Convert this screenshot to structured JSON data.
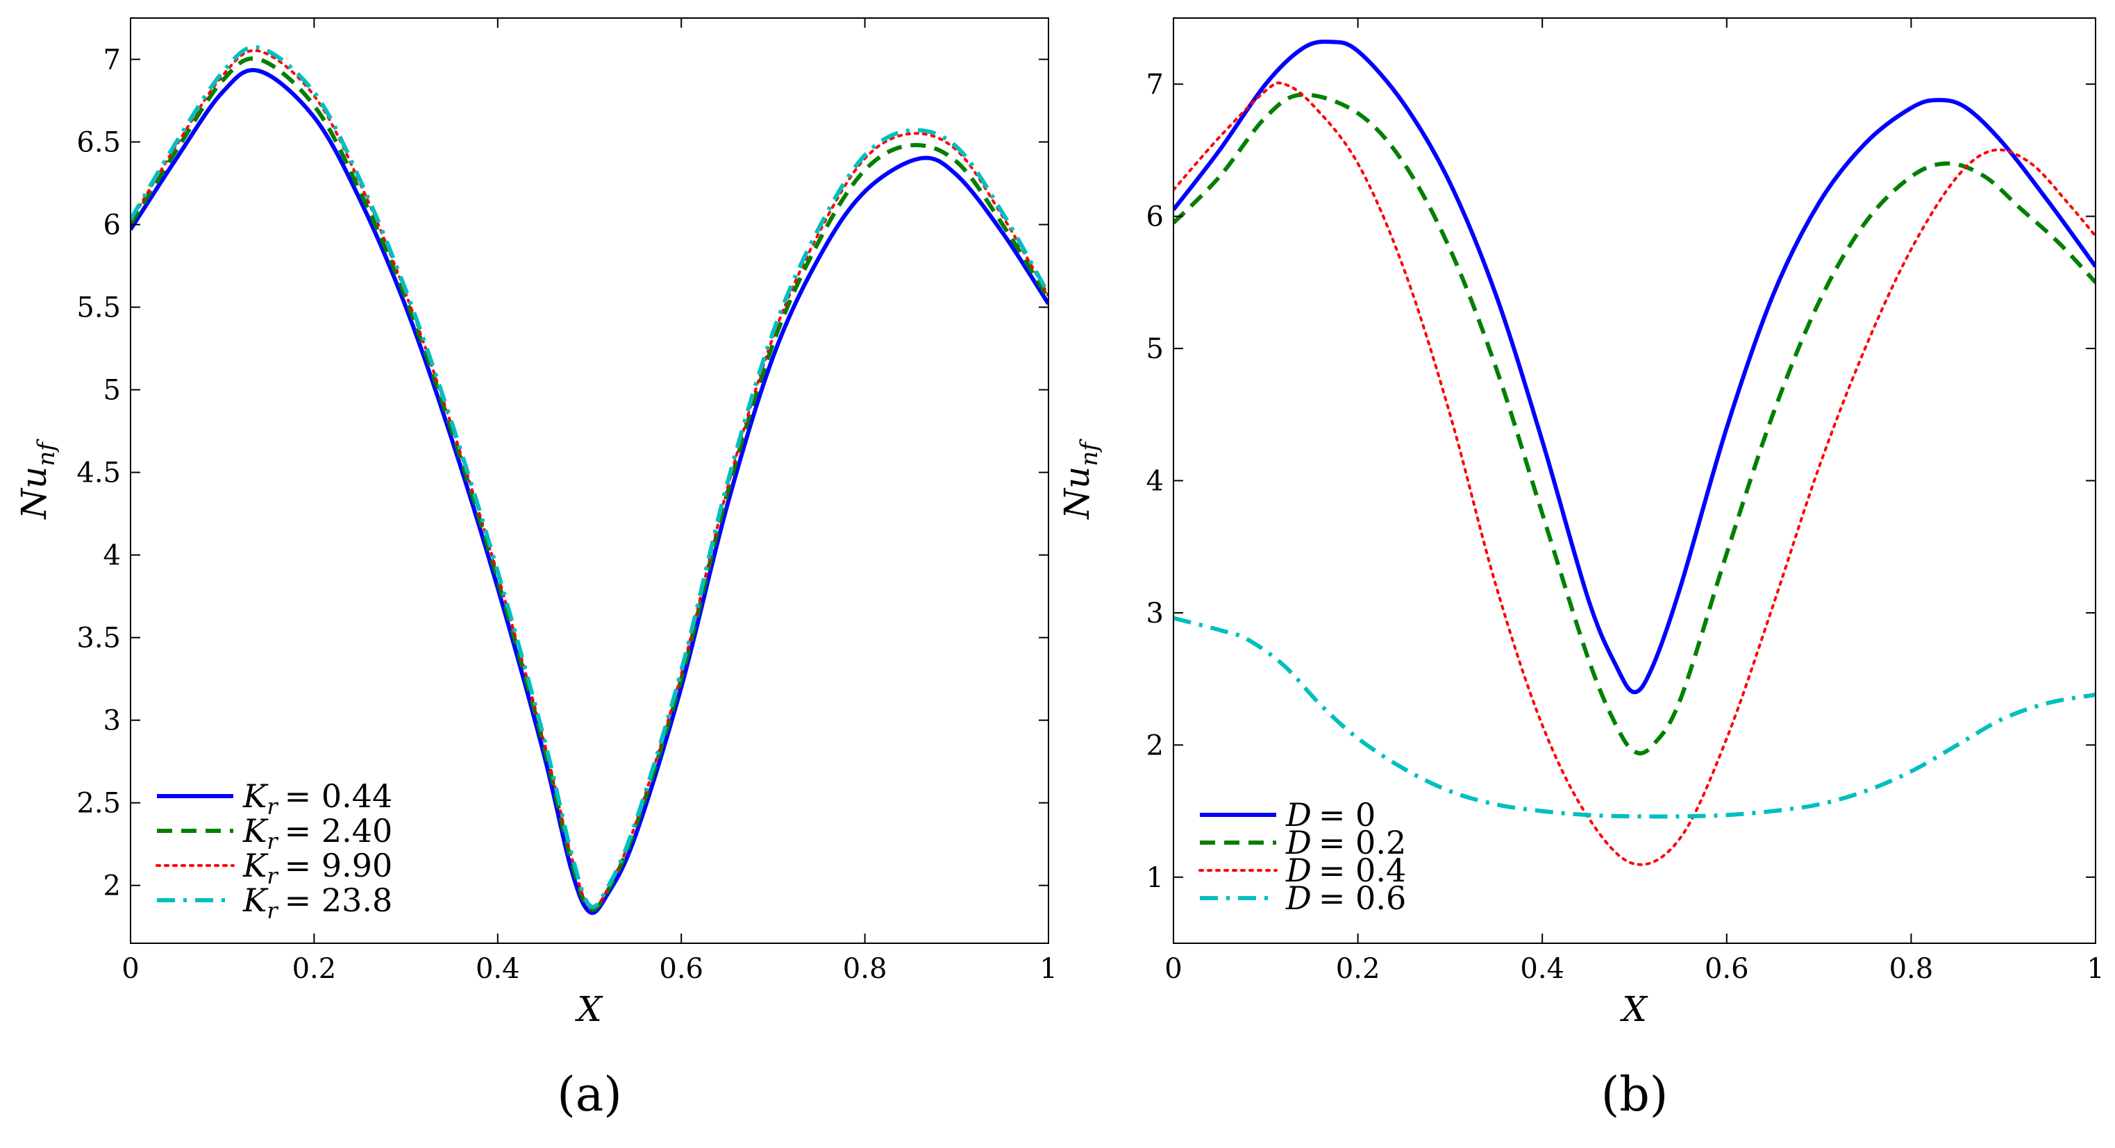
{
  "figure": {
    "colors": {
      "blue": "#0000FF",
      "green": "#008000",
      "red": "#FF0000",
      "cyan": "#00BFBF",
      "axis": "#000000"
    }
  },
  "chart_data": [
    {
      "type": "line",
      "panel_label": "(a)",
      "xlabel": "X",
      "ylabel": "Nu_nf",
      "ylabel_main": "Nu",
      "ylabel_sub": "nf",
      "xlim": [
        0,
        1
      ],
      "ylim": [
        1.65,
        7.25
      ],
      "xticks": [
        0,
        0.2,
        0.4,
        0.6,
        0.8,
        1
      ],
      "xtick_labels": [
        "0",
        "0.2",
        "0.4",
        "0.6",
        "0.8",
        "1"
      ],
      "yticks": [
        2,
        2.5,
        3,
        3.5,
        4,
        4.5,
        5,
        5.5,
        6,
        6.5,
        7
      ],
      "ytick_labels": [
        "2",
        "2.5",
        "3",
        "3.5",
        "4",
        "4.5",
        "5",
        "5.5",
        "6",
        "6.5",
        "7"
      ],
      "legend_position": "bottom-left",
      "series": [
        {
          "name": "K_r = 0.44",
          "label_var": "K",
          "label_sub": "r",
          "label_value": "= 0.44",
          "color": "#0000FF",
          "style": "solid",
          "x": [
            0,
            0.05,
            0.1,
            0.14,
            0.2,
            0.25,
            0.3,
            0.35,
            0.4,
            0.45,
            0.48,
            0.5,
            0.52,
            0.55,
            0.6,
            0.65,
            0.7,
            0.75,
            0.8,
            0.86,
            0.9,
            0.95,
            1.0
          ],
          "y": [
            5.97,
            6.4,
            6.8,
            6.93,
            6.65,
            6.15,
            5.5,
            4.7,
            3.8,
            2.8,
            2.1,
            1.84,
            1.95,
            2.3,
            3.2,
            4.3,
            5.2,
            5.8,
            6.2,
            6.4,
            6.3,
            5.95,
            5.52
          ]
        },
        {
          "name": "K_r = 2.40",
          "label_var": "K",
          "label_sub": "r",
          "label_value": "= 2.40",
          "color": "#008000",
          "style": "dashed",
          "x": [
            0,
            0.05,
            0.1,
            0.14,
            0.2,
            0.25,
            0.3,
            0.35,
            0.4,
            0.45,
            0.48,
            0.5,
            0.52,
            0.55,
            0.6,
            0.65,
            0.7,
            0.75,
            0.8,
            0.85,
            0.9,
            0.95,
            1.0
          ],
          "y": [
            6.0,
            6.45,
            6.87,
            7.0,
            6.72,
            6.2,
            5.55,
            4.75,
            3.85,
            2.85,
            2.15,
            1.86,
            1.97,
            2.35,
            3.25,
            4.37,
            5.28,
            5.9,
            6.33,
            6.48,
            6.38,
            6.0,
            5.55
          ]
        },
        {
          "name": "K_r = 9.90",
          "label_var": "K",
          "label_sub": "r",
          "label_value": "= 9.90",
          "color": "#FF0000",
          "style": "dotted",
          "x": [
            0,
            0.05,
            0.1,
            0.14,
            0.2,
            0.25,
            0.3,
            0.35,
            0.4,
            0.45,
            0.48,
            0.5,
            0.52,
            0.55,
            0.6,
            0.65,
            0.7,
            0.75,
            0.8,
            0.85,
            0.9,
            0.95,
            1.0
          ],
          "y": [
            6.02,
            6.48,
            6.9,
            7.05,
            6.78,
            6.25,
            5.58,
            4.78,
            3.88,
            2.88,
            2.18,
            1.87,
            1.98,
            2.37,
            3.28,
            4.4,
            5.32,
            5.95,
            6.4,
            6.55,
            6.45,
            6.05,
            5.57
          ]
        },
        {
          "name": "K_r = 23.8",
          "label_var": "K",
          "label_sub": "r",
          "label_value": "= 23.8",
          "color": "#00BFBF",
          "style": "dashdot",
          "x": [
            0,
            0.05,
            0.1,
            0.14,
            0.2,
            0.25,
            0.3,
            0.35,
            0.4,
            0.45,
            0.48,
            0.5,
            0.52,
            0.55,
            0.6,
            0.65,
            0.7,
            0.75,
            0.8,
            0.85,
            0.9,
            0.95,
            1.0
          ],
          "y": [
            6.03,
            6.5,
            6.92,
            7.07,
            6.8,
            6.27,
            5.6,
            4.8,
            3.9,
            2.9,
            2.2,
            1.88,
            1.99,
            2.38,
            3.3,
            4.43,
            5.35,
            5.98,
            6.42,
            6.57,
            6.47,
            6.07,
            5.58
          ]
        }
      ]
    },
    {
      "type": "line",
      "panel_label": "(b)",
      "xlabel": "X",
      "ylabel": "Nu_nf",
      "ylabel_main": "Nu",
      "ylabel_sub": "nf",
      "xlim": [
        0,
        1
      ],
      "ylim": [
        0.5,
        7.5
      ],
      "xticks": [
        0,
        0.2,
        0.4,
        0.6,
        0.8,
        1
      ],
      "xtick_labels": [
        "0",
        "0.2",
        "0.4",
        "0.6",
        "0.8",
        "1"
      ],
      "yticks": [
        1,
        2,
        3,
        4,
        5,
        6,
        7
      ],
      "ytick_labels": [
        "1",
        "2",
        "3",
        "4",
        "5",
        "6",
        "7"
      ],
      "legend_position": "bottom-left",
      "series": [
        {
          "name": "D = 0",
          "label_var": "D",
          "label_sub": "",
          "label_value": "= 0",
          "color": "#0000FF",
          "style": "solid",
          "x": [
            0,
            0.05,
            0.1,
            0.14,
            0.17,
            0.2,
            0.25,
            0.3,
            0.35,
            0.4,
            0.45,
            0.48,
            0.5,
            0.52,
            0.55,
            0.6,
            0.65,
            0.7,
            0.75,
            0.8,
            0.83,
            0.86,
            0.9,
            0.95,
            1.0
          ],
          "y": [
            6.05,
            6.5,
            7.0,
            7.27,
            7.32,
            7.25,
            6.85,
            6.25,
            5.4,
            4.3,
            3.1,
            2.6,
            2.4,
            2.6,
            3.2,
            4.4,
            5.4,
            6.1,
            6.55,
            6.82,
            6.88,
            6.82,
            6.55,
            6.1,
            5.62
          ]
        },
        {
          "name": "D = 0.2",
          "label_var": "D",
          "label_sub": "",
          "label_value": "= 0.2",
          "color": "#008000",
          "style": "dashed",
          "x": [
            0,
            0.05,
            0.1,
            0.14,
            0.2,
            0.25,
            0.3,
            0.35,
            0.4,
            0.45,
            0.48,
            0.5,
            0.52,
            0.55,
            0.6,
            0.65,
            0.7,
            0.75,
            0.8,
            0.84,
            0.88,
            0.92,
            0.96,
            1.0
          ],
          "y": [
            5.95,
            6.3,
            6.75,
            6.92,
            6.78,
            6.4,
            5.75,
            4.85,
            3.75,
            2.65,
            2.15,
            1.95,
            2.0,
            2.35,
            3.45,
            4.5,
            5.35,
            5.95,
            6.3,
            6.4,
            6.3,
            6.05,
            5.8,
            5.5
          ]
        },
        {
          "name": "D = 0.4",
          "label_var": "D",
          "label_sub": "",
          "label_value": "= 0.4",
          "color": "#FF0000",
          "style": "dotted",
          "x": [
            0,
            0.05,
            0.1,
            0.12,
            0.15,
            0.2,
            0.25,
            0.3,
            0.35,
            0.4,
            0.45,
            0.5,
            0.55,
            0.6,
            0.65,
            0.7,
            0.75,
            0.8,
            0.85,
            0.89,
            0.93,
            0.97,
            1.0
          ],
          "y": [
            6.2,
            6.6,
            6.95,
            7.0,
            6.85,
            6.4,
            5.6,
            4.5,
            3.2,
            2.15,
            1.45,
            1.1,
            1.3,
            2.05,
            3.05,
            4.1,
            5.0,
            5.75,
            6.3,
            6.5,
            6.4,
            6.1,
            5.85
          ]
        },
        {
          "name": "D = 0.6",
          "label_var": "D",
          "label_sub": "",
          "label_value": "= 0.6",
          "color": "#00BFBF",
          "style": "dashdot",
          "x": [
            0,
            0.05,
            0.08,
            0.12,
            0.16,
            0.2,
            0.25,
            0.3,
            0.35,
            0.4,
            0.45,
            0.5,
            0.55,
            0.6,
            0.65,
            0.7,
            0.75,
            0.8,
            0.85,
            0.9,
            0.95,
            1.0
          ],
          "y": [
            2.96,
            2.87,
            2.8,
            2.6,
            2.3,
            2.05,
            1.82,
            1.65,
            1.55,
            1.5,
            1.47,
            1.46,
            1.46,
            1.47,
            1.5,
            1.55,
            1.65,
            1.8,
            2.0,
            2.2,
            2.32,
            2.38
          ]
        }
      ]
    }
  ]
}
